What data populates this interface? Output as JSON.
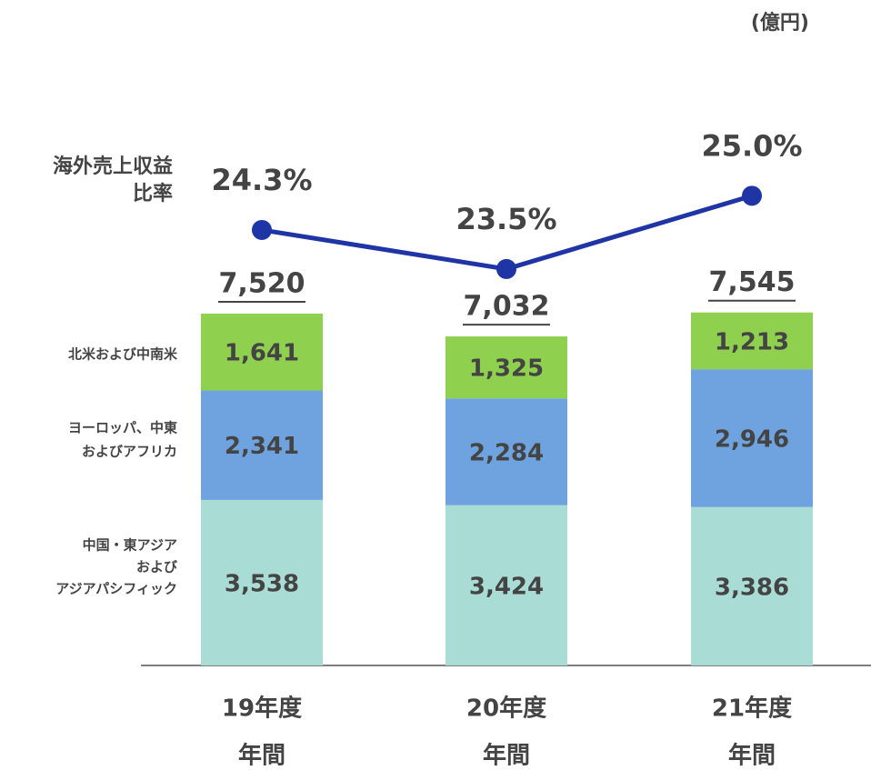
{
  "chart_data": {
    "type": "bar",
    "stacked": true,
    "unit": "(億円)",
    "categories": [
      [
        "19年度",
        "年間"
      ],
      [
        "20年度",
        "年間"
      ],
      [
        "21年度",
        "年間"
      ]
    ],
    "series": [
      {
        "name": [
          "中国・東アジア",
          "および",
          "アジアパシフィック"
        ],
        "color": "#aadcd6",
        "values": [
          3538,
          3424,
          3386
        ],
        "value_labels": [
          "3,538",
          "3,424",
          "3,386"
        ]
      },
      {
        "name": [
          "ヨーロッパ、中東",
          "およびアフリカ"
        ],
        "color": "#6fa3e0",
        "values": [
          2341,
          2284,
          2946
        ],
        "value_labels": [
          "2,341",
          "2,284",
          "2,946"
        ]
      },
      {
        "name": [
          "北米および中南米"
        ],
        "color": "#8fd14f",
        "values": [
          1641,
          1325,
          1213
        ],
        "value_labels": [
          "1,641",
          "1,325",
          "1,213"
        ]
      },
      {
        "type": "line",
        "axis": "y2",
        "name": [
          "海外売上収益",
          "比率"
        ],
        "color": "#1f35a6",
        "values": [
          24.3,
          23.5,
          25.0
        ],
        "value_labels": [
          "24.3%",
          "23.5%",
          "25.0%"
        ]
      }
    ],
    "totals": {
      "values": [
        7520,
        7032,
        7545
      ],
      "value_labels": [
        "7,520",
        "7,032",
        "7,545"
      ]
    },
    "ylim": [
      0,
      8000
    ],
    "y2lim": [
      20,
      26
    ]
  }
}
